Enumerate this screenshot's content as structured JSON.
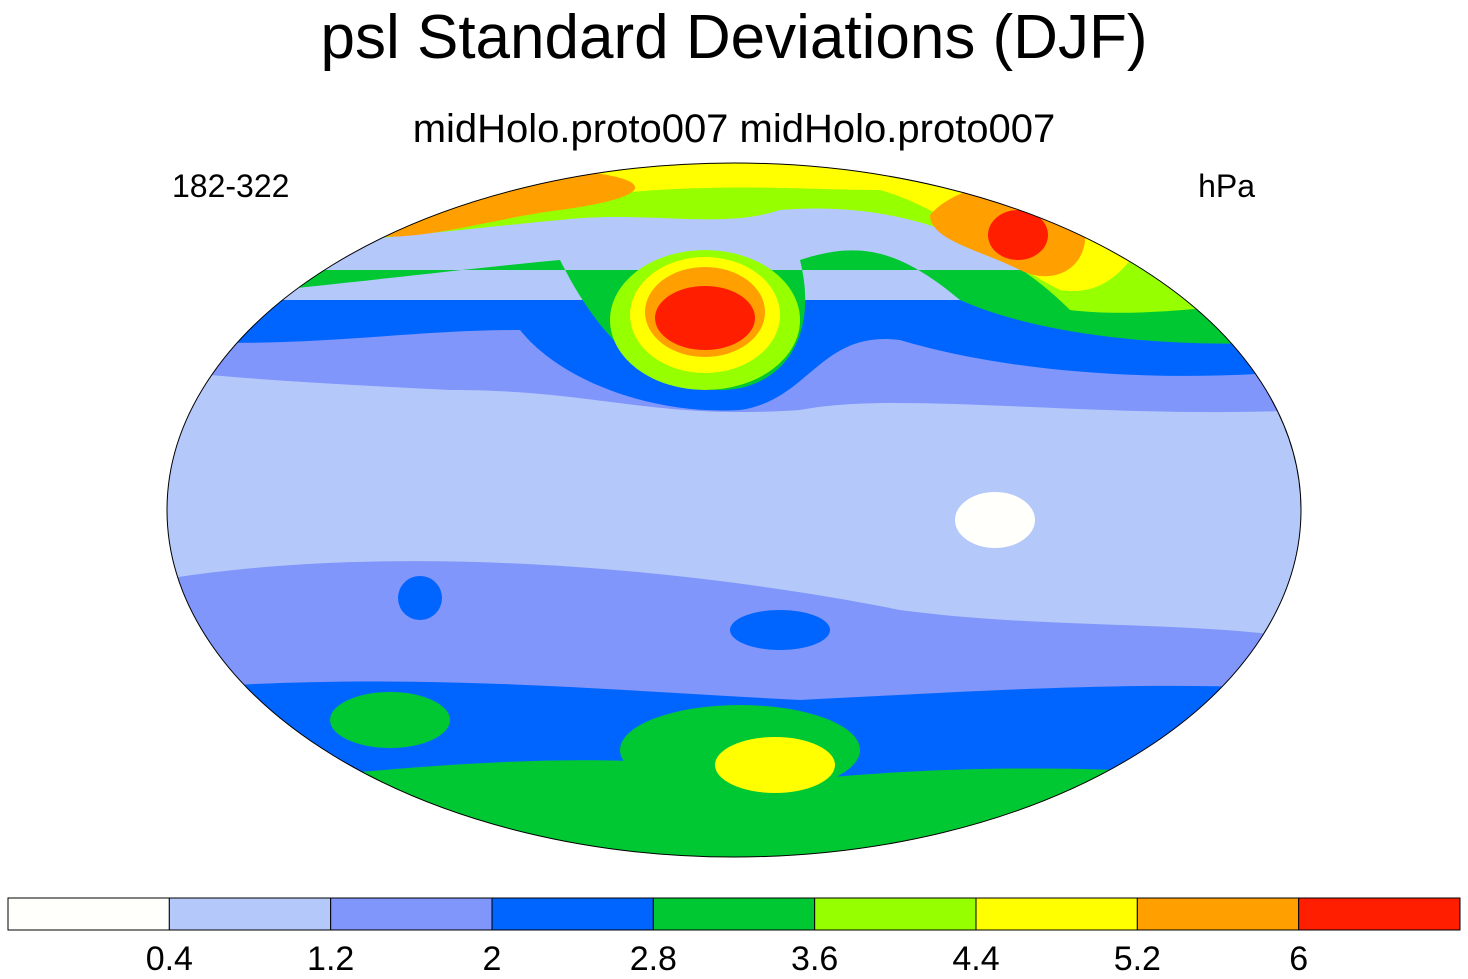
{
  "title": "psl Standard Deviations (DJF)",
  "subtitle": "midHolo.proto007  midHolo.proto007",
  "left_label": "182-322",
  "right_label": "hPa",
  "colorbar": {
    "levels": [
      0.4,
      1.2,
      2,
      2.8,
      3.6,
      4.4,
      5.2,
      6
    ],
    "colors": [
      "#fffffc",
      "#b4c8fa",
      "#8096fa",
      "#0064ff",
      "#00c832",
      "#96ff00",
      "#ffff00",
      "#ffa000",
      "#ff1e00"
    ]
  }
}
